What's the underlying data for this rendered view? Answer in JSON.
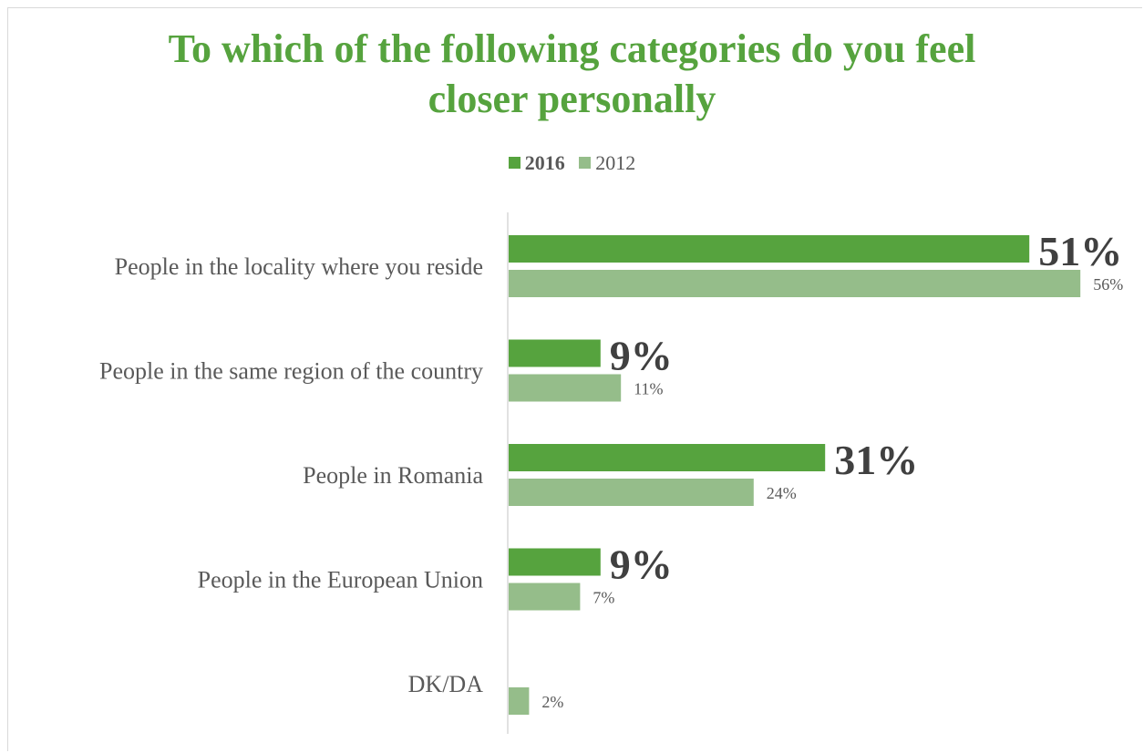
{
  "chart_data": {
    "type": "bar",
    "orientation": "horizontal",
    "title_lines": [
      "To which of the following categories do you feel",
      "closer personally"
    ],
    "categories": [
      "People in the locality where you reside",
      "People in the same region of the country",
      "People in Romania",
      "People in the European Union",
      "DK/DA"
    ],
    "series": [
      {
        "name": "2016",
        "color": "#56a33e",
        "values": [
          51,
          9,
          31,
          9,
          null
        ],
        "labels": [
          "51%",
          "9%",
          "31%",
          "9%",
          ""
        ]
      },
      {
        "name": "2012",
        "color": "#95bd8a",
        "values": [
          56,
          11,
          24,
          7,
          2
        ],
        "labels": [
          "56%",
          "11%",
          "24%",
          "7%",
          "2%"
        ]
      }
    ],
    "legend_position": "top",
    "grid": false
  }
}
